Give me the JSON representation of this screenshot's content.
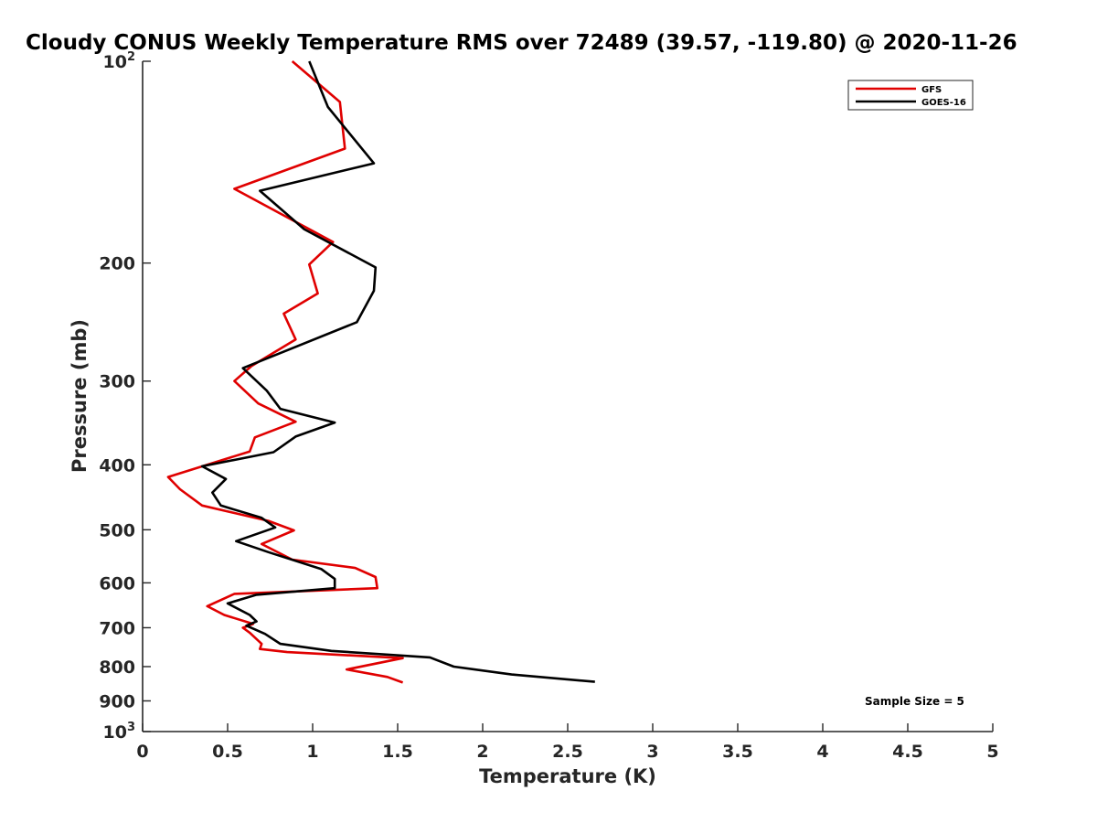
{
  "chart_data": {
    "type": "line",
    "title": "Cloudy CONUS Weekly Temperature RMS over 72489 (39.57, -119.80) @ 2020-11-26",
    "xlabel": "Temperature (K)",
    "ylabel": "Pressure (mb)",
    "xlim": [
      0,
      5
    ],
    "ylim": [
      100,
      1000
    ],
    "y_scale": "log",
    "y_reversed": true,
    "x_ticks": [
      "0",
      "0.5",
      "1",
      "1.5",
      "2",
      "2.5",
      "3",
      "3.5",
      "4",
      "4.5",
      "5"
    ],
    "y_ticks": [
      {
        "value": 100,
        "base": "10",
        "exp": "2"
      },
      {
        "value": 200,
        "label": "200"
      },
      {
        "value": 300,
        "label": "300"
      },
      {
        "value": 400,
        "label": "400"
      },
      {
        "value": 500,
        "label": "500"
      },
      {
        "value": 600,
        "label": "600"
      },
      {
        "value": 700,
        "label": "700"
      },
      {
        "value": 800,
        "label": "800"
      },
      {
        "value": 900,
        "label": "900"
      },
      {
        "value": 1000,
        "base": "10",
        "exp": "3"
      }
    ],
    "grid": false,
    "legend_position": "top-right",
    "annotation": "Sample Size = 5",
    "series": [
      {
        "name": "GFS",
        "color": "#e00000",
        "points": [
          [
            0.88,
            100
          ],
          [
            1.16,
            115
          ],
          [
            1.19,
            135
          ],
          [
            0.54,
            155
          ],
          [
            1.12,
            186
          ],
          [
            0.98,
            201
          ],
          [
            1.03,
            222
          ],
          [
            0.83,
            238
          ],
          [
            0.9,
            260
          ],
          [
            0.64,
            285
          ],
          [
            0.54,
            300
          ],
          [
            0.68,
            324
          ],
          [
            0.9,
            345
          ],
          [
            0.66,
            364
          ],
          [
            0.63,
            382
          ],
          [
            0.15,
            417
          ],
          [
            0.22,
            435
          ],
          [
            0.35,
            460
          ],
          [
            0.74,
            485
          ],
          [
            0.89,
            501
          ],
          [
            0.7,
            525
          ],
          [
            0.88,
            554
          ],
          [
            1.25,
            570
          ],
          [
            1.37,
            588
          ],
          [
            1.38,
            611
          ],
          [
            0.54,
            623
          ],
          [
            0.38,
            650
          ],
          [
            0.48,
            670
          ],
          [
            0.65,
            691
          ],
          [
            0.59,
            700
          ],
          [
            0.63,
            712
          ],
          [
            0.7,
            740
          ],
          [
            0.69,
            753
          ],
          [
            0.85,
            761
          ],
          [
            1.53,
            777
          ],
          [
            1.2,
            808
          ],
          [
            1.44,
            829
          ],
          [
            1.53,
            845
          ]
        ]
      },
      {
        "name": "GOES-16",
        "color": "#000000",
        "points": [
          [
            0.98,
            100
          ],
          [
            1.09,
            117
          ],
          [
            1.36,
            142
          ],
          [
            0.69,
            156
          ],
          [
            0.95,
            178
          ],
          [
            1.37,
            203
          ],
          [
            1.36,
            220
          ],
          [
            1.26,
            245
          ],
          [
            0.59,
            287
          ],
          [
            0.73,
            310
          ],
          [
            0.81,
            330
          ],
          [
            1.13,
            346
          ],
          [
            0.9,
            363
          ],
          [
            0.77,
            383
          ],
          [
            0.35,
            402
          ],
          [
            0.49,
            420
          ],
          [
            0.41,
            440
          ],
          [
            0.46,
            460
          ],
          [
            0.7,
            480
          ],
          [
            0.78,
            496
          ],
          [
            0.55,
            520
          ],
          [
            0.74,
            540
          ],
          [
            1.05,
            572
          ],
          [
            1.13,
            592
          ],
          [
            1.13,
            611
          ],
          [
            0.67,
            625
          ],
          [
            0.5,
            644
          ],
          [
            0.63,
            670
          ],
          [
            0.67,
            685
          ],
          [
            0.61,
            695
          ],
          [
            0.72,
            715
          ],
          [
            0.81,
            740
          ],
          [
            1.11,
            758
          ],
          [
            1.69,
            775
          ],
          [
            1.83,
            800
          ],
          [
            2.17,
            822
          ],
          [
            2.66,
            843
          ]
        ]
      }
    ]
  }
}
